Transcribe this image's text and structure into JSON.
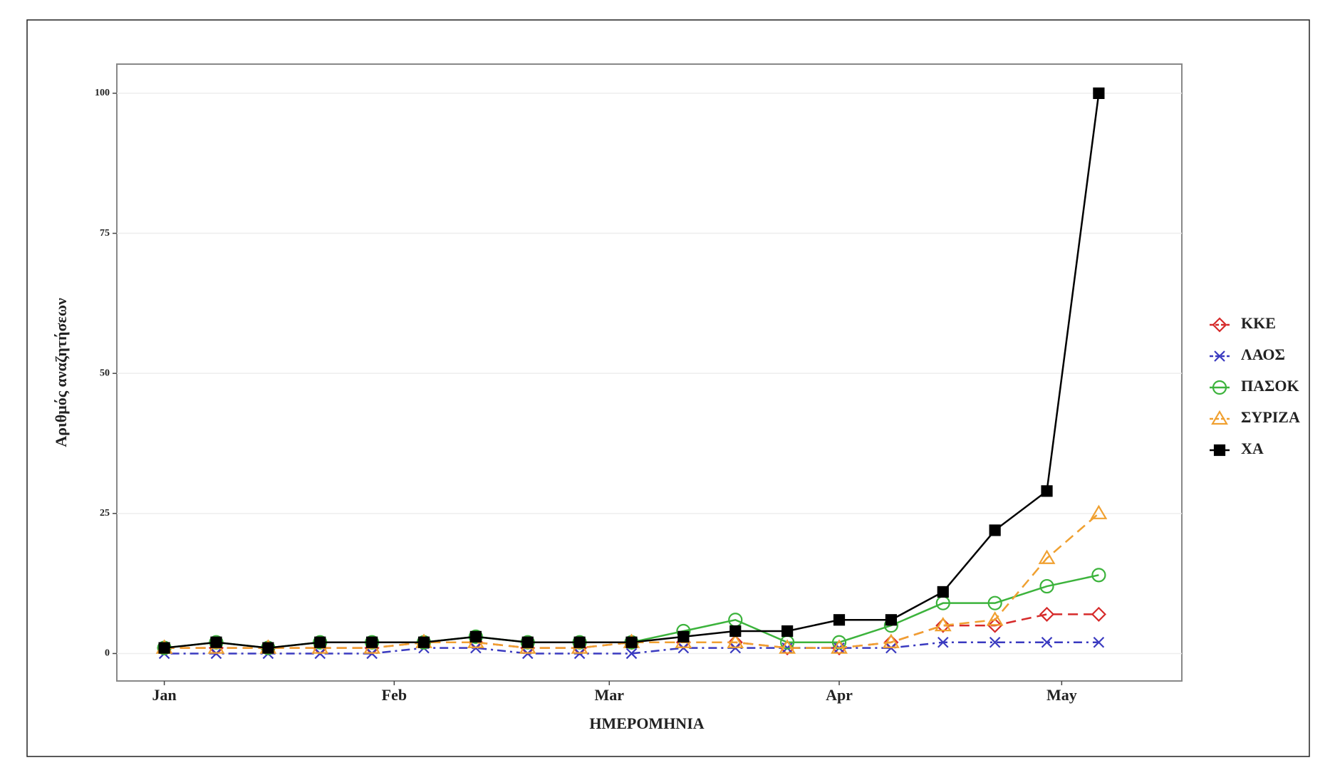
{
  "chart_data": {
    "type": "line",
    "x_label": "ΗΜΕΡΟΜΗΝΙΑ",
    "y_label": "Αριθμός αναζητήσεων",
    "x": [
      0,
      7,
      14,
      21,
      28,
      35,
      42,
      49,
      56,
      63,
      70,
      77,
      84,
      91,
      98,
      105,
      112,
      119,
      126
    ],
    "xlim": [
      -6.4,
      137.2
    ],
    "xticks": [
      {
        "value": 0,
        "label": "Jan"
      },
      {
        "value": 31,
        "label": "Feb"
      },
      {
        "value": 60,
        "label": "Mar"
      },
      {
        "value": 91,
        "label": "Apr"
      },
      {
        "value": 121,
        "label": "May"
      }
    ],
    "ylim": [
      -4.9,
      105.2
    ],
    "yticks": [
      0,
      25,
      50,
      75,
      100
    ],
    "grid": true,
    "legend": "right",
    "series": [
      {
        "name": "ΚΚΕ",
        "color": "#d62a2a",
        "marker": "diamond",
        "dash": "dashed",
        "values": [
          1,
          1,
          1,
          1,
          1,
          2,
          2,
          1,
          1,
          2,
          2,
          2,
          1,
          1,
          2,
          5,
          5,
          7,
          7
        ]
      },
      {
        "name": "ΛΑΟΣ",
        "color": "#3a3ac0",
        "marker": "cross",
        "dash": "dotdash",
        "values": [
          0,
          0,
          0,
          0,
          0,
          1,
          1,
          0,
          0,
          0,
          1,
          1,
          1,
          1,
          1,
          2,
          2,
          2,
          2
        ]
      },
      {
        "name": "ΠΑΣΟΚ",
        "color": "#3cb33c",
        "marker": "circle",
        "dash": "solid",
        "values": [
          1,
          2,
          1,
          2,
          2,
          2,
          3,
          2,
          2,
          2,
          4,
          6,
          2,
          2,
          5,
          9,
          9,
          12,
          14
        ]
      },
      {
        "name": "ΣΥΡΙΖΑ",
        "color": "#f0a030",
        "marker": "triangle",
        "dash": "dashed",
        "values": [
          1,
          1,
          1,
          1,
          1,
          2,
          2,
          1,
          1,
          2,
          2,
          2,
          1,
          1,
          2,
          5,
          6,
          17,
          25
        ]
      },
      {
        "name": "ΧΑ",
        "color": "#000000",
        "marker": "square",
        "dash": "solid",
        "values": [
          1,
          2,
          1,
          2,
          2,
          2,
          3,
          2,
          2,
          2,
          3,
          4,
          4,
          6,
          6,
          11,
          22,
          29,
          100
        ]
      }
    ]
  }
}
